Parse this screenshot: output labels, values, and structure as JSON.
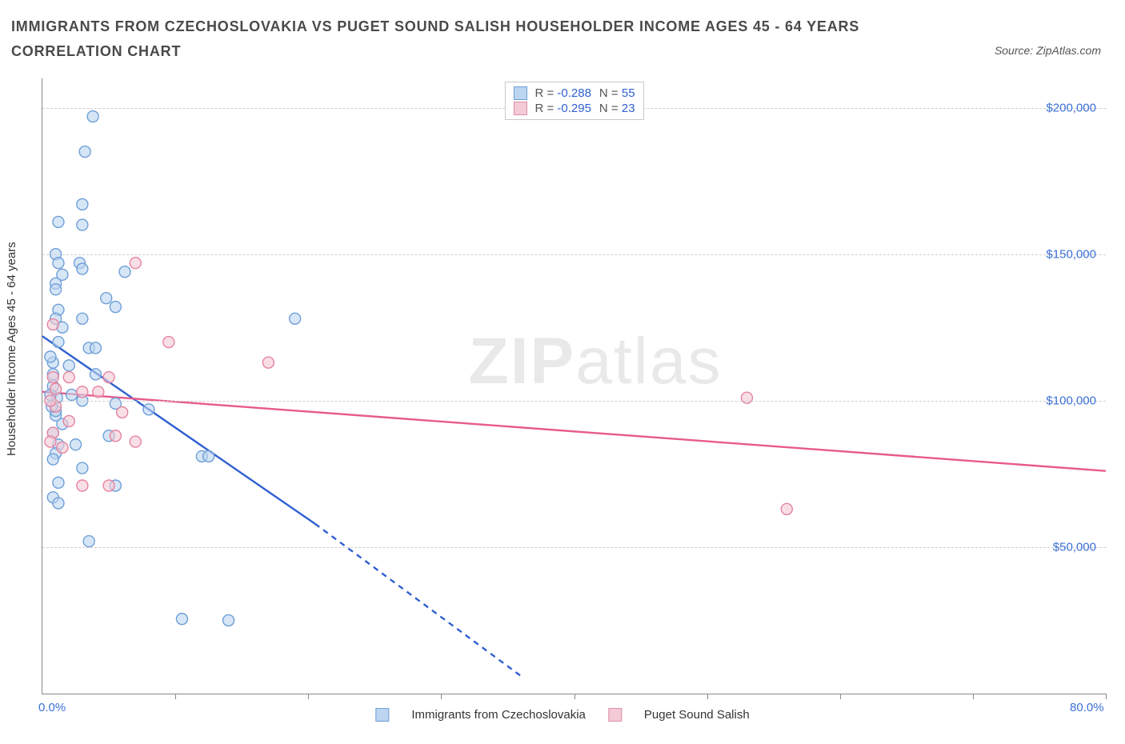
{
  "title": "IMMIGRANTS FROM CZECHOSLOVAKIA VS PUGET SOUND SALISH HOUSEHOLDER INCOME AGES 45 - 64 YEARS CORRELATION CHART",
  "source": "Source: ZipAtlas.com",
  "ylabel": "Householder Income Ages 45 - 64 years",
  "watermark_a": "ZIP",
  "watermark_b": "atlas",
  "chart": {
    "type": "scatter",
    "background_color": "#ffffff",
    "grid_color": "#d0d0d0",
    "axis_color": "#888888",
    "label_color": "#3b6fd6",
    "x": {
      "min": 0.0,
      "max": 80.0,
      "min_label": "0.0%",
      "max_label": "80.0%",
      "tick_positions_pct": [
        10,
        20,
        30,
        40,
        50,
        60,
        70,
        80
      ]
    },
    "y": {
      "min": 0,
      "max": 210000,
      "gridlines": [
        50000,
        100000,
        150000,
        200000
      ],
      "labels": [
        "$50,000",
        "$100,000",
        "$150,000",
        "$200,000"
      ]
    },
    "series": [
      {
        "name": "Immigrants from Czechoslovakia",
        "fill": "#bcd5f0",
        "stroke": "#6f9fd8",
        "stats": {
          "R": "-0.288",
          "N": "55"
        },
        "trend": {
          "color": "#2f5fd0",
          "dash_after_x": 20.5,
          "points": [
            [
              0,
              122000
            ],
            [
              20.5,
              58000
            ],
            [
              36,
              6000
            ]
          ]
        },
        "points": [
          [
            3.8,
            197000
          ],
          [
            3.2,
            185000
          ],
          [
            3.0,
            167000
          ],
          [
            1.2,
            161000
          ],
          [
            3.0,
            160000
          ],
          [
            1.0,
            150000
          ],
          [
            1.2,
            147000
          ],
          [
            2.8,
            147000
          ],
          [
            3.0,
            145000
          ],
          [
            6.2,
            144000
          ],
          [
            1.5,
            143000
          ],
          [
            1.0,
            140000
          ],
          [
            1.0,
            138000
          ],
          [
            4.8,
            135000
          ],
          [
            5.5,
            132000
          ],
          [
            1.2,
            131000
          ],
          [
            1.0,
            128000
          ],
          [
            3.0,
            128000
          ],
          [
            19.0,
            128000
          ],
          [
            1.5,
            125000
          ],
          [
            1.2,
            120000
          ],
          [
            3.5,
            118000
          ],
          [
            4.0,
            118000
          ],
          [
            0.8,
            113000
          ],
          [
            2.0,
            112000
          ],
          [
            0.8,
            109000
          ],
          [
            4.0,
            109000
          ],
          [
            0.8,
            105000
          ],
          [
            1.1,
            101000
          ],
          [
            3.0,
            100000
          ],
          [
            5.5,
            99000
          ],
          [
            8.0,
            97000
          ],
          [
            1.0,
            95000
          ],
          [
            1.0,
            96500
          ],
          [
            1.5,
            92000
          ],
          [
            0.8,
            89000
          ],
          [
            5.0,
            88000
          ],
          [
            1.2,
            85000
          ],
          [
            2.5,
            85000
          ],
          [
            12.0,
            81000
          ],
          [
            12.5,
            81000
          ],
          [
            1.0,
            82000
          ],
          [
            0.8,
            80000
          ],
          [
            3.0,
            77000
          ],
          [
            1.2,
            72000
          ],
          [
            5.5,
            71000
          ],
          [
            0.8,
            67000
          ],
          [
            1.2,
            65000
          ],
          [
            3.5,
            52000
          ],
          [
            10.5,
            25500
          ],
          [
            14.0,
            25000
          ],
          [
            0.6,
            102000
          ],
          [
            0.7,
            98000
          ],
          [
            0.6,
            115000
          ],
          [
            2.2,
            102000
          ]
        ]
      },
      {
        "name": "Puget Sound Salish",
        "fill": "#f3cad6",
        "stroke": "#e583a0",
        "stats": {
          "R": "-0.295",
          "N": "23"
        },
        "trend": {
          "color": "#e75a8c",
          "dash_after_x": 100,
          "points": [
            [
              0,
              103000
            ],
            [
              80,
              76000
            ]
          ]
        },
        "points": [
          [
            7.0,
            147000
          ],
          [
            0.8,
            126000
          ],
          [
            9.5,
            120000
          ],
          [
            17.0,
            113000
          ],
          [
            0.8,
            108000
          ],
          [
            2.0,
            108000
          ],
          [
            5.0,
            108000
          ],
          [
            3.0,
            103000
          ],
          [
            4.2,
            103000
          ],
          [
            53.0,
            101000
          ],
          [
            1.0,
            98000
          ],
          [
            6.0,
            96000
          ],
          [
            2.0,
            93000
          ],
          [
            0.8,
            89000
          ],
          [
            5.5,
            88000
          ],
          [
            0.6,
            86000
          ],
          [
            7.0,
            86000
          ],
          [
            1.5,
            84000
          ],
          [
            3.0,
            71000
          ],
          [
            5.0,
            71000
          ],
          [
            56.0,
            63000
          ],
          [
            1.0,
            104000
          ],
          [
            0.6,
            100000
          ]
        ]
      }
    ],
    "legend_top": [
      {
        "swatch": "blue",
        "R": "-0.288",
        "N": "55"
      },
      {
        "swatch": "pink",
        "R": "-0.295",
        "N": "23"
      }
    ],
    "legend_bottom": [
      {
        "swatch": "blue",
        "label": "Immigrants from Czechoslovakia"
      },
      {
        "swatch": "pink",
        "label": "Puget Sound Salish"
      }
    ]
  }
}
